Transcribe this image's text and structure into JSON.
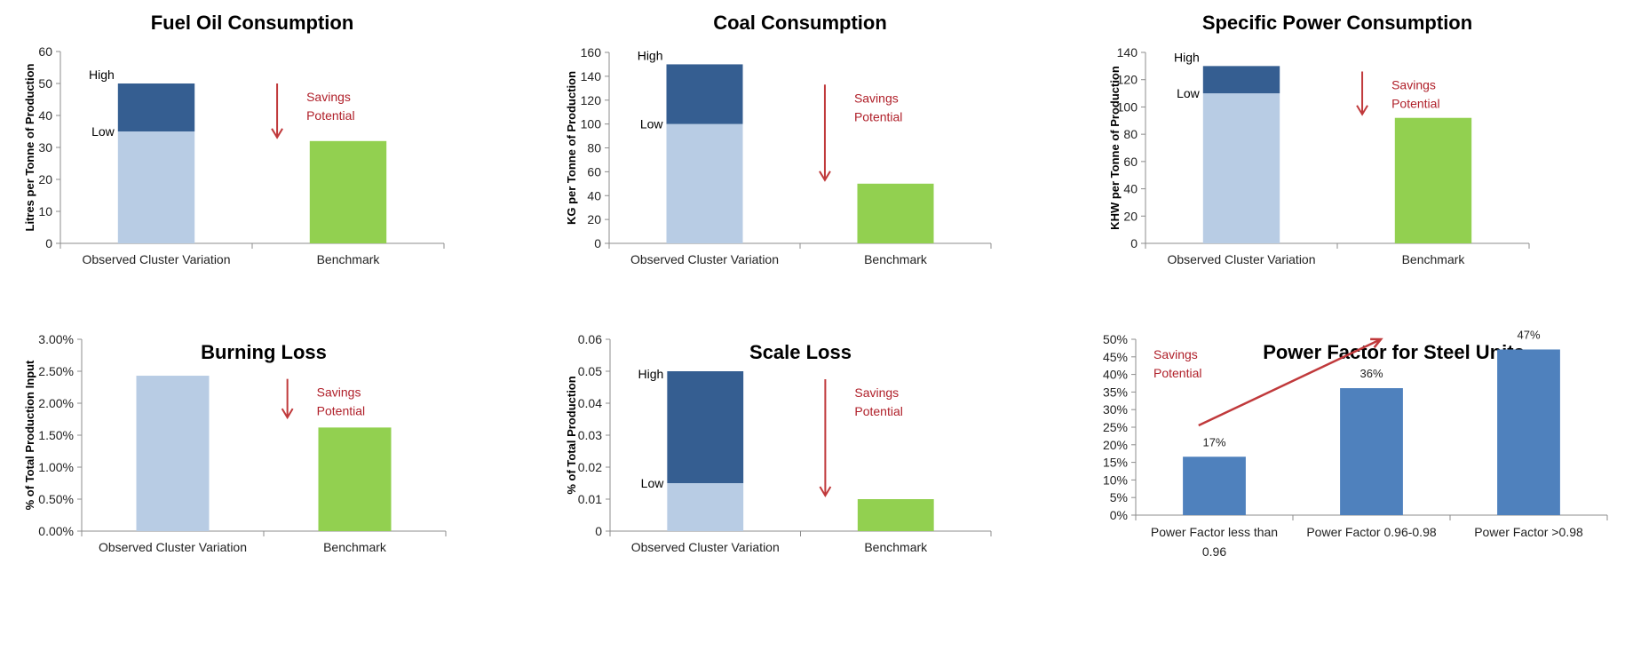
{
  "colors": {
    "low_bar": "#b8cce4",
    "high_bar": "#355e91",
    "benchmark_bar": "#92d050",
    "single_bar": "#4f81bd",
    "arrow": "#c0393b",
    "annotation_text": "#b0202a",
    "axis": "#8c8c8c"
  },
  "chart_data": [
    {
      "id": "fuel-oil",
      "type": "bar",
      "title": "Fuel Oil Consumption",
      "ylabel": "Litres per Tonne of Production",
      "xlabel": "",
      "ylim": [
        0,
        60
      ],
      "yticks": [
        0,
        10,
        20,
        30,
        40,
        50,
        60
      ],
      "ytick_labels": [
        "0",
        "10",
        "20",
        "30",
        "40",
        "50",
        "60"
      ],
      "categories": [
        "Observed Cluster Variation",
        "Benchmark"
      ],
      "range_bar": {
        "low": 35,
        "high": 50,
        "low_label": "Low",
        "high_label": "High"
      },
      "benchmark": 32,
      "annotation": {
        "lines": [
          "Savings",
          "Potential"
        ],
        "arrow": "down",
        "arrow_from": 50,
        "arrow_to": 32
      }
    },
    {
      "id": "coal",
      "type": "bar",
      "title": "Coal Consumption",
      "ylabel": "KG per Tonne of Production",
      "xlabel": "",
      "ylim": [
        0,
        160
      ],
      "yticks": [
        0,
        20,
        40,
        60,
        80,
        100,
        120,
        140,
        160
      ],
      "ytick_labels": [
        "0",
        "20",
        "40",
        "60",
        "80",
        "100",
        "120",
        "140",
        "160"
      ],
      "categories": [
        "Observed Cluster Variation",
        "Benchmark"
      ],
      "range_bar": {
        "low": 100,
        "high": 150,
        "low_label": "Low",
        "high_label": "High"
      },
      "benchmark": 50,
      "annotation": {
        "lines": [
          "Savings",
          "Potential"
        ],
        "arrow": "down",
        "arrow_from": 133,
        "arrow_to": 50
      }
    },
    {
      "id": "specific-power",
      "type": "bar",
      "title": "Specific Power Consumption",
      "ylabel": "KHW per Tonne of Production",
      "xlabel": "",
      "ylim": [
        0,
        140
      ],
      "yticks": [
        0,
        20,
        40,
        60,
        80,
        100,
        120,
        140
      ],
      "ytick_labels": [
        "0",
        "20",
        "40",
        "60",
        "80",
        "100",
        "120",
        "140"
      ],
      "categories": [
        "Observed Cluster Variation",
        "Benchmark"
      ],
      "range_bar": {
        "low": 110,
        "high": 130,
        "low_label": "Low",
        "high_label": "High"
      },
      "benchmark": 92,
      "annotation": {
        "lines": [
          "Savings",
          "Potential"
        ],
        "arrow": "down",
        "arrow_from": 126,
        "arrow_to": 92
      }
    },
    {
      "id": "burning-loss",
      "type": "bar",
      "title": "Burning Loss",
      "ylabel": "% of Total Production Input",
      "xlabel": "",
      "ylim": [
        0,
        3.0
      ],
      "yticks": [
        0,
        0.5,
        1.0,
        1.5,
        2.0,
        2.5,
        3.0
      ],
      "ytick_labels": [
        "0.00%",
        "0.50%",
        "1.00%",
        "1.50%",
        "2.00%",
        "2.50%",
        "3.00%"
      ],
      "categories": [
        "Observed Cluster Variation",
        "Benchmark"
      ],
      "observed": 2.43,
      "benchmark": 1.62,
      "annotation": {
        "lines": [
          "Savings",
          "Potential"
        ],
        "arrow": "down",
        "arrow_from": 2.38,
        "arrow_to": 1.72
      }
    },
    {
      "id": "scale-loss",
      "type": "bar",
      "title": "Scale Loss",
      "ylabel": "% of Total Production",
      "xlabel": "",
      "ylim": [
        0,
        0.06
      ],
      "yticks": [
        0,
        0.01,
        0.02,
        0.03,
        0.04,
        0.05,
        0.06
      ],
      "ytick_labels": [
        "0",
        "0.01",
        "0.02",
        "0.03",
        "0.04",
        "0.05",
        "0.06"
      ],
      "categories": [
        "Observed Cluster Variation",
        "Benchmark"
      ],
      "range_bar": {
        "low": 0.015,
        "high": 0.05,
        "low_label": "Low",
        "high_label": "High"
      },
      "benchmark": 0.01,
      "annotation": {
        "lines": [
          "Savings",
          "Potential"
        ],
        "arrow": "down",
        "arrow_from": 0.0475,
        "arrow_to": 0.01
      }
    },
    {
      "id": "power-factor",
      "type": "bar",
      "title": "Power Factor for Steel Units",
      "ylabel": "",
      "xlabel": "",
      "ylim": [
        0,
        50
      ],
      "yticks": [
        0,
        5,
        10,
        15,
        20,
        25,
        30,
        35,
        40,
        45,
        50
      ],
      "ytick_labels": [
        "0%",
        "5%",
        "10%",
        "15%",
        "20%",
        "25%",
        "30%",
        "35%",
        "40%",
        "45%",
        "50%"
      ],
      "categories": [
        [
          "Power Factor  less than",
          "0.96"
        ],
        [
          "Power Factor 0.96-0.98"
        ],
        [
          "Power Factor >0.98"
        ]
      ],
      "values": [
        16.6,
        36.1,
        47.1
      ],
      "data_labels": [
        "17%",
        "36%",
        "47%"
      ],
      "annotation": {
        "lines": [
          "Savings",
          "Potential"
        ],
        "arrow": "up-right"
      }
    }
  ]
}
